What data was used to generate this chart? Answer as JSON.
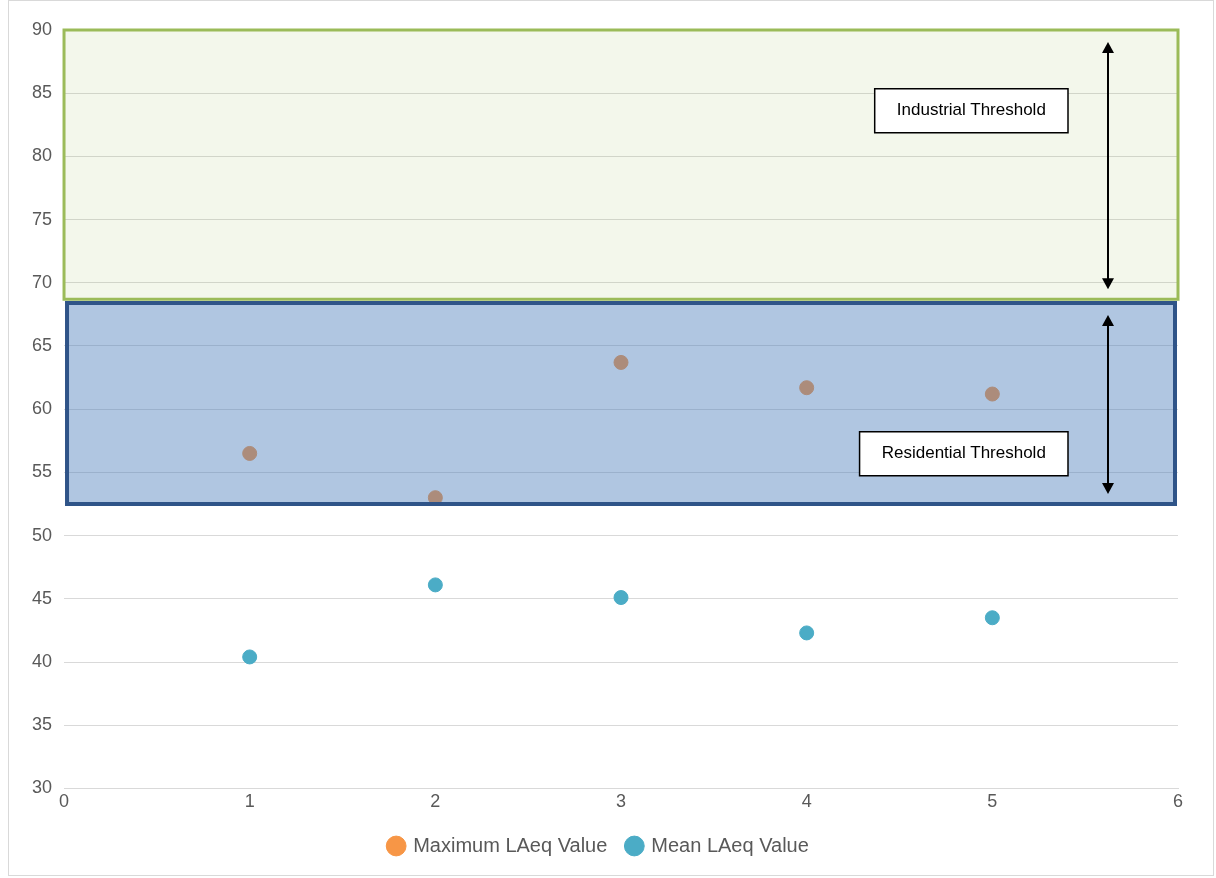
{
  "chart_data": {
    "type": "scatter",
    "x": [
      1,
      2,
      3,
      4,
      5
    ],
    "series": [
      {
        "name": "Maximum LAeq Value",
        "color": "#f79646",
        "values": [
          56.5,
          53.0,
          63.7,
          61.7,
          61.2
        ]
      },
      {
        "name": "Mean LAeq Value",
        "color": "#4bacc6",
        "values": [
          40.4,
          46.1,
          45.1,
          42.3,
          43.5
        ]
      }
    ],
    "xlim": [
      0,
      6
    ],
    "xticks": [
      0,
      1,
      2,
      3,
      4,
      5,
      6
    ],
    "ylim": [
      30,
      90
    ],
    "yticks": [
      30,
      35,
      40,
      45,
      50,
      55,
      60,
      65,
      70,
      75,
      80,
      85,
      90
    ],
    "grid": "y",
    "legend": "bottom",
    "marker": "circle",
    "bands": [
      {
        "axis": "y",
        "from": 68.7,
        "to": 90,
        "label": "Industrial Threshold",
        "color": "#9bbb59"
      },
      {
        "axis": "y",
        "from": 52.5,
        "to": 68.4,
        "label": "Residential Threshold",
        "color": "#4f81bd"
      }
    ]
  }
}
